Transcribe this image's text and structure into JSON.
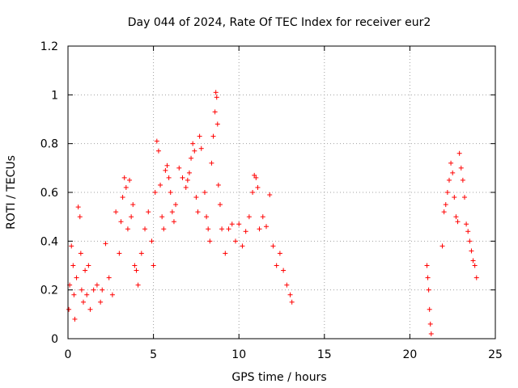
{
  "chart_data": {
    "type": "scatter",
    "title": "Day 044 of 2024, Rate Of TEC Index for receiver eur2",
    "xlabel": "GPS time / hours",
    "ylabel": "ROTI / TECUs",
    "xlim": [
      0,
      25
    ],
    "ylim": [
      0,
      1.2
    ],
    "xticks": [
      "0",
      "5",
      "10",
      "15",
      "20",
      "25"
    ],
    "yticks": [
      "0",
      "0.2",
      "0.4",
      "0.6",
      "0.8",
      "1",
      "1.2"
    ],
    "grid": true,
    "marker": "+",
    "color": "#ff0000",
    "series": [
      {
        "x": [
          0.05,
          0.1,
          0.2,
          0.3,
          0.35,
          0.4,
          0.5,
          0.6,
          0.7,
          0.75,
          0.8,
          0.9,
          1.0,
          1.1,
          1.2,
          1.3,
          1.5,
          1.7,
          1.9,
          2.0,
          2.2,
          2.4,
          2.6,
          2.8,
          3.0,
          3.1,
          3.2,
          3.3,
          3.4,
          3.5,
          3.6,
          3.7,
          3.8,
          3.9,
          4.0,
          4.1,
          4.3,
          4.5,
          4.7,
          4.9,
          5.0,
          5.1,
          5.2,
          5.3,
          5.4,
          5.5,
          5.6,
          5.7,
          5.8,
          5.9,
          6.0,
          6.1,
          6.2,
          6.3,
          6.5,
          6.7,
          6.9,
          7.0,
          7.1,
          7.2,
          7.3,
          7.4,
          7.5,
          7.6,
          7.7,
          7.8,
          8.0,
          8.1,
          8.2,
          8.3,
          8.4,
          8.5,
          8.6,
          8.65,
          8.7,
          8.75,
          8.8,
          8.9,
          9.0,
          9.2,
          9.4,
          9.6,
          9.8,
          10.0,
          10.2,
          10.4,
          10.6,
          10.8,
          10.9,
          11.0,
          11.1,
          11.2,
          11.4,
          11.6,
          11.8,
          12.0,
          12.2,
          12.4,
          12.6,
          12.8,
          13.0,
          13.1,
          21.0,
          21.05,
          21.1,
          21.15,
          21.2,
          21.25,
          21.9,
          22.0,
          22.1,
          22.2,
          22.3,
          22.4,
          22.5,
          22.6,
          22.7,
          22.8,
          22.9,
          23.0,
          23.1,
          23.2,
          23.3,
          23.4,
          23.5,
          23.6,
          23.7,
          23.8,
          23.9
        ],
        "y": [
          0.12,
          0.22,
          0.38,
          0.3,
          0.18,
          0.08,
          0.25,
          0.54,
          0.5,
          0.35,
          0.2,
          0.15,
          0.28,
          0.18,
          0.3,
          0.12,
          0.2,
          0.22,
          0.15,
          0.2,
          0.39,
          0.25,
          0.18,
          0.52,
          0.35,
          0.48,
          0.58,
          0.66,
          0.62,
          0.45,
          0.65,
          0.5,
          0.55,
          0.3,
          0.28,
          0.22,
          0.35,
          0.45,
          0.52,
          0.4,
          0.3,
          0.6,
          0.81,
          0.77,
          0.63,
          0.5,
          0.45,
          0.69,
          0.71,
          0.66,
          0.6,
          0.52,
          0.48,
          0.55,
          0.7,
          0.66,
          0.62,
          0.65,
          0.68,
          0.74,
          0.8,
          0.77,
          0.58,
          0.52,
          0.83,
          0.78,
          0.6,
          0.5,
          0.45,
          0.4,
          0.72,
          0.83,
          0.93,
          1.01,
          0.99,
          0.88,
          0.63,
          0.55,
          0.45,
          0.35,
          0.45,
          0.47,
          0.4,
          0.47,
          0.38,
          0.44,
          0.5,
          0.6,
          0.67,
          0.66,
          0.62,
          0.45,
          0.5,
          0.46,
          0.59,
          0.38,
          0.3,
          0.35,
          0.28,
          0.22,
          0.18,
          0.15,
          0.3,
          0.25,
          0.2,
          0.12,
          0.06,
          0.02,
          0.38,
          0.52,
          0.55,
          0.6,
          0.65,
          0.72,
          0.68,
          0.58,
          0.5,
          0.48,
          0.76,
          0.7,
          0.65,
          0.58,
          0.47,
          0.44,
          0.4,
          0.36,
          0.32,
          0.3,
          0.25
        ]
      }
    ]
  }
}
